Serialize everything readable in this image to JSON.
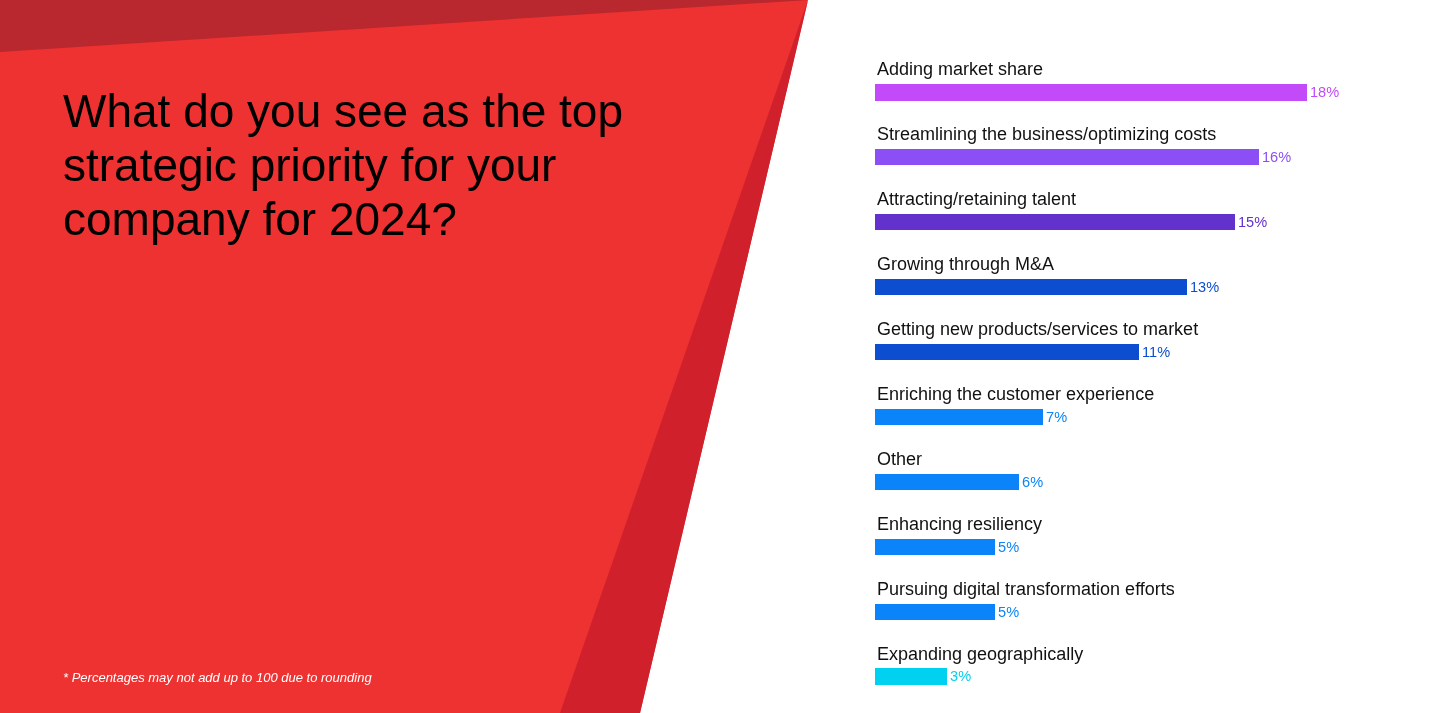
{
  "chart_data": {
    "type": "bar",
    "orientation": "horizontal",
    "title": "What do you see as the top strategic priority for your company for 2024?",
    "categories": [
      "Adding market share",
      "Streamlining the business/optimizing costs",
      "Attracting/retaining talent",
      "Growing through M&A",
      "Getting new products/services to market",
      "Enriching the customer experience",
      "Other",
      "Enhancing resiliency",
      "Pursuing digital transformation efforts",
      "Expanding geographically"
    ],
    "values": [
      18,
      16,
      15,
      13,
      11,
      7,
      6,
      5,
      5,
      3
    ],
    "value_labels": [
      "18%",
      "16%",
      "15%",
      "13%",
      "11%",
      "7%",
      "6%",
      "5%",
      "5%",
      "3%"
    ],
    "colors": [
      "#c34af9",
      "#8c4ff6",
      "#6331cb",
      "#0c4ecf",
      "#0c4ecf",
      "#0a84f8",
      "#0a84f8",
      "#0a84f8",
      "#0a84f8",
      "#00d1f0"
    ],
    "annotations": [
      "* Percentages may not add up to 100 due to rounding"
    ],
    "legend": false,
    "grid": false
  }
}
